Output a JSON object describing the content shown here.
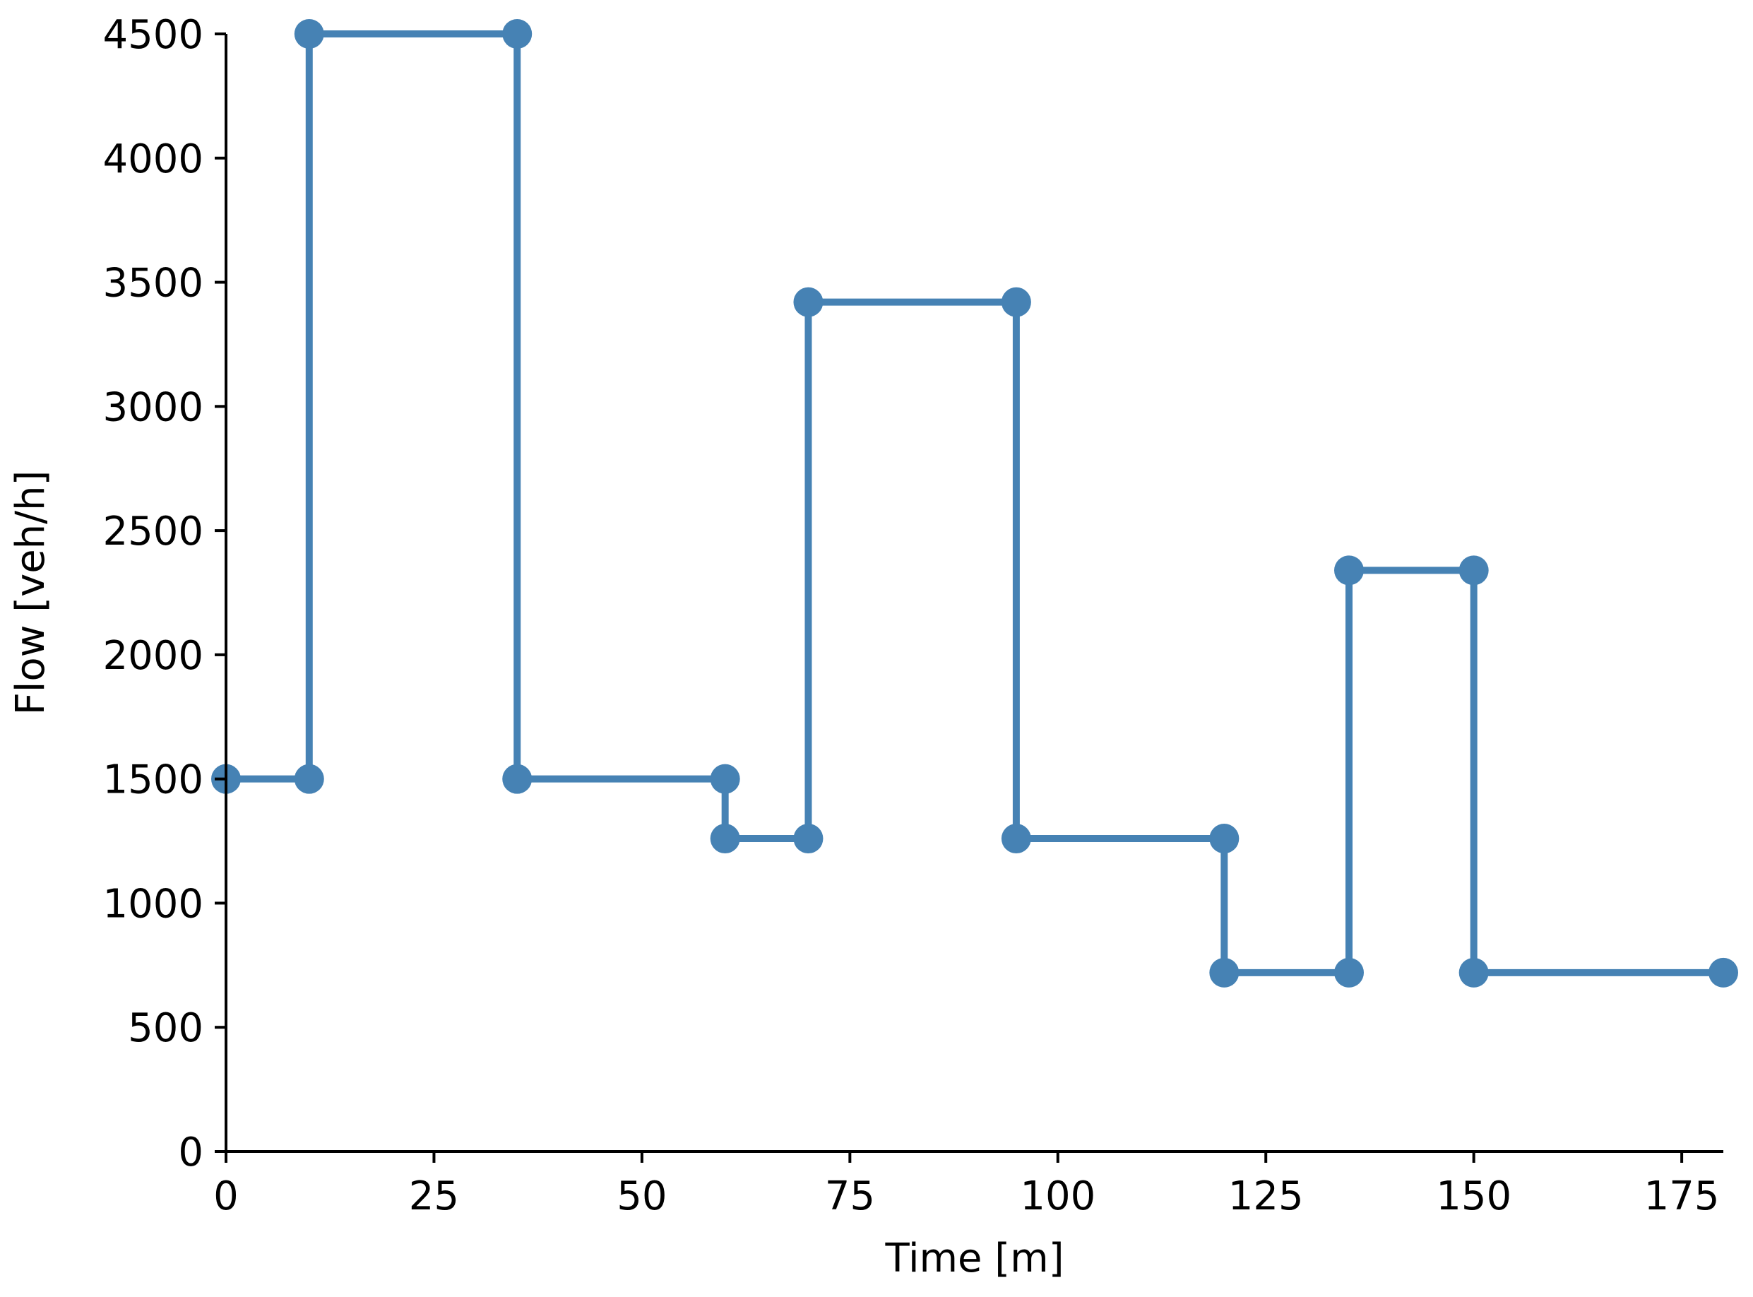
{
  "chart_data": {
    "type": "line",
    "step": "post",
    "title": "",
    "xlabel": "Time [m]",
    "ylabel": "Flow [veh/h]",
    "xlim": [
      0,
      180
    ],
    "ylim": [
      0,
      4500
    ],
    "xticks": [
      0,
      25,
      50,
      75,
      100,
      125,
      150,
      175
    ],
    "yticks": [
      0,
      500,
      1000,
      1500,
      2000,
      2500,
      3000,
      3500,
      4000,
      4500
    ],
    "grid": false,
    "legend": "none",
    "series": [
      {
        "color": "#4682b4",
        "points": [
          [
            0,
            1500
          ],
          [
            10,
            1500
          ],
          [
            10,
            4500
          ],
          [
            35,
            4500
          ],
          [
            35,
            1500
          ],
          [
            60,
            1500
          ],
          [
            60,
            1260
          ],
          [
            70,
            1260
          ],
          [
            70,
            3420
          ],
          [
            95,
            3420
          ],
          [
            95,
            1260
          ],
          [
            120,
            1260
          ],
          [
            120,
            720
          ],
          [
            135,
            720
          ],
          [
            135,
            2340
          ],
          [
            150,
            2340
          ],
          [
            150,
            720
          ],
          [
            180,
            720
          ]
        ]
      }
    ]
  }
}
